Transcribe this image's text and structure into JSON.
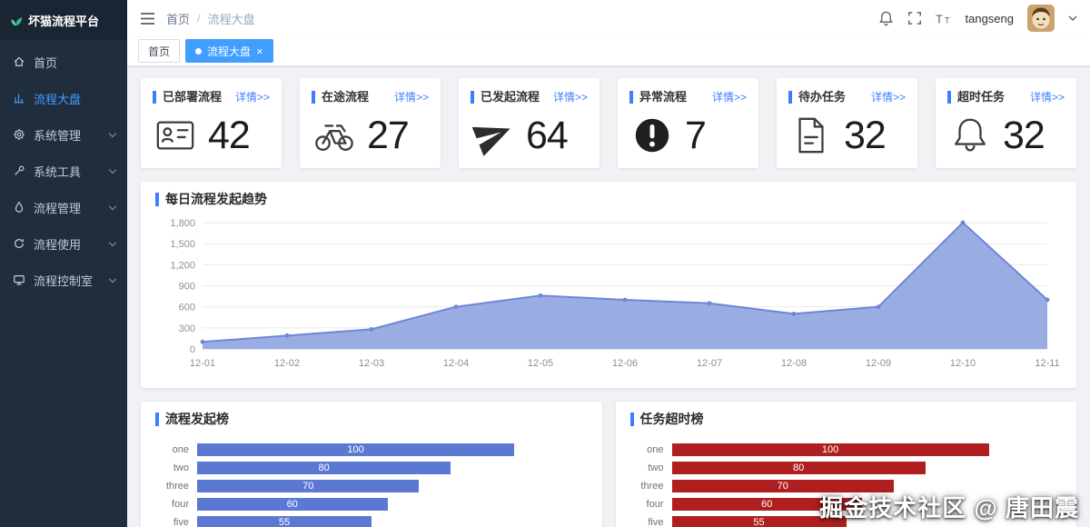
{
  "colors": {
    "accent": "#3d7eff",
    "tab_active": "#409eff",
    "sidebar_bg": "#1f2d3d",
    "sidebar_text": "#bfcbd9",
    "logo_green": "#2fbf8f"
  },
  "app_title": "坏猫流程平台",
  "sidebar": {
    "items": [
      {
        "label": "首页",
        "icon": "home",
        "active": false,
        "expandable": false
      },
      {
        "label": "流程大盘",
        "icon": "bar-chart",
        "active": true,
        "expandable": false
      },
      {
        "label": "系统管理",
        "icon": "gear",
        "active": false,
        "expandable": true
      },
      {
        "label": "系统工具",
        "icon": "tools",
        "active": false,
        "expandable": true
      },
      {
        "label": "流程管理",
        "icon": "droplet",
        "active": false,
        "expandable": true
      },
      {
        "label": "流程使用",
        "icon": "refresh",
        "active": false,
        "expandable": true
      },
      {
        "label": "流程控制室",
        "icon": "monitor",
        "active": false,
        "expandable": true
      }
    ]
  },
  "topbar": {
    "breadcrumb": {
      "home": "首页",
      "separator": "/",
      "current": "流程大盘"
    },
    "icons": [
      "bell",
      "fullscreen",
      "font-size"
    ],
    "username": "tangseng"
  },
  "tabs": {
    "items": [
      {
        "label": "首页",
        "active": false
      },
      {
        "label": "流程大盘",
        "active": true,
        "close_icon": "×"
      }
    ]
  },
  "stats": {
    "detail_label": "详情>>",
    "cards": [
      {
        "title": "已部署流程",
        "value": "42",
        "icon": "id-card"
      },
      {
        "title": "在途流程",
        "value": "27",
        "icon": "bicycle"
      },
      {
        "title": "已发起流程",
        "value": "64",
        "icon": "paper-plane"
      },
      {
        "title": "异常流程",
        "value": "7",
        "icon": "exclamation-circle"
      },
      {
        "title": "待办任务",
        "value": "32",
        "icon": "document"
      },
      {
        "title": "超时任务",
        "value": "32",
        "icon": "bell"
      }
    ]
  },
  "chart_data": [
    {
      "type": "area",
      "title": "每日流程发起趋势",
      "x": [
        "12-01",
        "12-02",
        "12-03",
        "12-04",
        "12-05",
        "12-06",
        "12-07",
        "12-08",
        "12-09",
        "12-10",
        "12-11"
      ],
      "values": [
        100,
        190,
        280,
        600,
        760,
        700,
        650,
        500,
        600,
        1800,
        700
      ],
      "ylim": [
        0,
        1800
      ],
      "ytick_step": 300,
      "grid": true,
      "legend_position": "none",
      "area_color": "#9aade3",
      "line_color": "#6e86d6"
    },
    {
      "type": "bar",
      "orientation": "horizontal",
      "title": "流程发起榜",
      "categories": [
        "one",
        "two",
        "three",
        "four",
        "five"
      ],
      "values": [
        100,
        80,
        70,
        60,
        55
      ],
      "xlim": [
        0,
        123
      ],
      "bar_color": "#5b79d3",
      "value_labels": true
    },
    {
      "type": "bar",
      "orientation": "horizontal",
      "title": "任务超时榜",
      "categories": [
        "one",
        "two",
        "three",
        "four",
        "five"
      ],
      "values": [
        100,
        80,
        70,
        60,
        55
      ],
      "xlim": [
        0,
        123
      ],
      "bar_color": "#b01f1f",
      "value_labels": true
    }
  ],
  "watermark": "掘金技术社区 @ 唐田震"
}
